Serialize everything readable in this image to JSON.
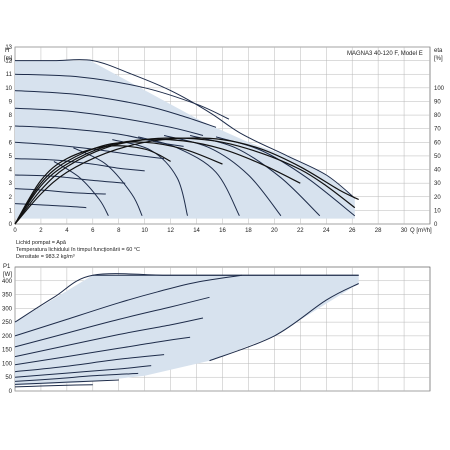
{
  "chart_data": [
    {
      "type": "line",
      "title": "MAGNA3 40-120 F, Model E",
      "xlabel": "Q [m³/h]",
      "ylabel": "H\n[m]",
      "y2label": "eta\n[%]",
      "xlim": [
        0,
        32
      ],
      "ylim": [
        0,
        13
      ],
      "y2lim": [
        0,
        130
      ],
      "xticks": [
        0,
        2,
        4,
        6,
        8,
        10,
        12,
        14,
        16,
        18,
        20,
        22,
        24,
        26,
        28,
        30
      ],
      "xtick_labels": [
        "0",
        "2",
        "4",
        "6",
        "8",
        "10",
        "12",
        "14",
        "16",
        "18",
        "20",
        "22",
        "24",
        "26",
        "28",
        "30"
      ],
      "yticks": [
        0,
        1,
        2,
        3,
        4,
        5,
        6,
        7,
        8,
        9,
        10,
        11,
        12,
        13
      ],
      "ytick_labels": [
        "0",
        "1",
        "2",
        "3",
        "4",
        "5",
        "6",
        "7",
        "8",
        "9",
        "10",
        "11",
        "12",
        "13"
      ],
      "y2ticks": [
        0,
        10,
        20,
        30,
        40,
        50,
        60,
        70,
        80,
        90,
        100
      ],
      "y2tick_labels": [
        "0",
        "10",
        "20",
        "30",
        "40",
        "50",
        "60",
        "70",
        "80",
        "90",
        "100"
      ],
      "grid": true,
      "colors": {
        "region": "#d7e2ee",
        "curve": "#1e2c4a",
        "efficiency": "#111111",
        "grid": "#b8b8b8"
      },
      "envelope": {
        "x": [
          0,
          5.8,
          14.5,
          18,
          21,
          24,
          26.2,
          26.2,
          0
        ],
        "y": [
          12,
          12,
          7.5,
          6,
          5,
          3.6,
          1.9,
          0.4,
          0.4
        ]
      },
      "series": [
        {
          "x": [
            0,
            3,
            6,
            9,
            12,
            15,
            17.5,
            21,
            24,
            26.2
          ],
          "y": [
            12,
            12,
            12,
            11,
            9.8,
            8.2,
            6.6,
            5.0,
            3.6,
            1.9
          ]
        },
        {
          "x": [
            0,
            5,
            10,
            14,
            16.5
          ],
          "y": [
            11,
            10.8,
            10,
            8.8,
            7.7
          ]
        },
        {
          "x": [
            0,
            5,
            10,
            13,
            15.5
          ],
          "y": [
            9.8,
            9.5,
            8.7,
            7.9,
            7.1
          ]
        },
        {
          "x": [
            0,
            4,
            8,
            12,
            14.5
          ],
          "y": [
            8.5,
            8.3,
            7.8,
            7.1,
            6.5
          ]
        },
        {
          "x": [
            0,
            4,
            8,
            11,
            13
          ],
          "y": [
            7.2,
            7.0,
            6.6,
            6.0,
            5.7
          ]
        },
        {
          "x": [
            0,
            3,
            6,
            9,
            11.5
          ],
          "y": [
            6.0,
            5.8,
            5.5,
            5.1,
            4.8
          ]
        },
        {
          "x": [
            0,
            3,
            6,
            8,
            10
          ],
          "y": [
            4.8,
            4.7,
            4.4,
            4.1,
            3.9
          ]
        },
        {
          "x": [
            0,
            3,
            6,
            8.5
          ],
          "y": [
            3.6,
            3.5,
            3.2,
            3.0
          ]
        },
        {
          "x": [
            0,
            2,
            4.5,
            7
          ],
          "y": [
            2.6,
            2.5,
            2.3,
            2.2
          ]
        },
        {
          "x": [
            0,
            2,
            4,
            5.5
          ],
          "y": [
            1.5,
            1.4,
            1.3,
            1.2
          ]
        }
      ],
      "throttle_curves": [
        {
          "x": [
            7.5,
            10.5,
            12.5,
            13.3
          ],
          "y": [
            6.2,
            5.4,
            3.4,
            0.6
          ]
        },
        {
          "x": [
            9.5,
            12.5,
            15.5,
            17.3
          ],
          "y": [
            6.4,
            5.6,
            3.8,
            0.6
          ]
        },
        {
          "x": [
            11.5,
            15,
            18,
            20.5
          ],
          "y": [
            6.5,
            5.6,
            3.6,
            0.6
          ]
        },
        {
          "x": [
            13.5,
            17,
            20.5,
            23.5
          ],
          "y": [
            6.5,
            5.6,
            3.4,
            0.6
          ]
        },
        {
          "x": [
            15.5,
            19,
            22.5,
            26.2
          ],
          "y": [
            6.4,
            5.4,
            3.4,
            0.6
          ]
        },
        {
          "x": [
            4.5,
            7,
            9,
            9.8
          ],
          "y": [
            5.6,
            4.4,
            2.2,
            0.6
          ]
        },
        {
          "x": [
            3,
            5,
            6.5,
            7.2
          ],
          "y": [
            4.6,
            3.4,
            1.8,
            0.6
          ]
        }
      ],
      "efficiency": [
        {
          "x": [
            0,
            2,
            4,
            7,
            10,
            13,
            16,
            19,
            22,
            25,
            26.5
          ],
          "y": [
            0,
            22,
            38,
            52,
            60,
            63,
            62,
            55,
            42,
            25,
            18
          ]
        },
        {
          "x": [
            0,
            2,
            4,
            7,
            10,
            13,
            16,
            19,
            22,
            24,
            26.2
          ],
          "y": [
            0,
            25,
            42,
            56,
            62,
            63,
            60,
            52,
            40,
            28,
            12
          ]
        },
        {
          "x": [
            0,
            2,
            4,
            7,
            10,
            13,
            16,
            19,
            22
          ],
          "y": [
            0,
            28,
            44,
            57,
            62,
            61,
            55,
            44,
            30
          ]
        },
        {
          "x": [
            0,
            2,
            4,
            7,
            10,
            13,
            16
          ],
          "y": [
            0,
            30,
            46,
            58,
            60,
            55,
            44
          ]
        },
        {
          "x": [
            0,
            2,
            4,
            7,
            10,
            12
          ],
          "y": [
            0,
            32,
            48,
            57,
            55,
            46
          ]
        }
      ],
      "notes": [
        "Lichid pompat = Apă",
        "Temperatura lichidului în timpul funcţionării = 60 °C",
        "Densitate = 983.2 kg/m³"
      ]
    },
    {
      "type": "line",
      "ylabel": "P1\n[W]",
      "xlim": [
        0,
        32
      ],
      "ylim": [
        0,
        450
      ],
      "yticks": [
        0,
        50,
        100,
        150,
        200,
        250,
        300,
        350,
        400
      ],
      "ytick_labels": [
        "0",
        "50",
        "100",
        "150",
        "200",
        "250",
        "300",
        "350",
        "400"
      ],
      "grid": true,
      "envelope": {
        "x": [
          0,
          6,
          12,
          18,
          26.5,
          26.5,
          20,
          15,
          10,
          5,
          0
        ],
        "y": [
          250,
          420,
          420,
          420,
          420,
          390,
          200,
          110,
          55,
          30,
          20
        ]
      },
      "series": [
        {
          "x": [
            0,
            3,
            6,
            12,
            18,
            26.5
          ],
          "y": [
            250,
            340,
            420,
            420,
            420,
            420
          ]
        },
        {
          "x": [
            0,
            4,
            8,
            11,
            14,
            17.5
          ],
          "y": [
            200,
            260,
            320,
            360,
            395,
            420
          ]
        },
        {
          "x": [
            0,
            4,
            8,
            12,
            15
          ],
          "y": [
            160,
            210,
            260,
            305,
            340
          ]
        },
        {
          "x": [
            0,
            4,
            8,
            12,
            14.5
          ],
          "y": [
            125,
            165,
            205,
            240,
            265
          ]
        },
        {
          "x": [
            0,
            4,
            8,
            11,
            13.5
          ],
          "y": [
            95,
            125,
            155,
            178,
            195
          ]
        },
        {
          "x": [
            0,
            4,
            8,
            11.5
          ],
          "y": [
            70,
            90,
            115,
            132
          ]
        },
        {
          "x": [
            0,
            4,
            8,
            10.5
          ],
          "y": [
            50,
            65,
            80,
            92
          ]
        },
        {
          "x": [
            0,
            3,
            6,
            9.5
          ],
          "y": [
            35,
            44,
            55,
            64
          ]
        },
        {
          "x": [
            0,
            3,
            6,
            8
          ],
          "y": [
            24,
            30,
            36,
            40
          ]
        },
        {
          "x": [
            0,
            2,
            4,
            6
          ],
          "y": [
            15,
            18,
            21,
            23
          ]
        },
        {
          "x": [
            6,
            12,
            18,
            24,
            26.5
          ],
          "y": [
            420,
            420,
            420,
            420,
            420
          ]
        },
        {
          "x": [
            15,
            20,
            24,
            26.5
          ],
          "y": [
            110,
            200,
            330,
            390
          ]
        }
      ]
    }
  ]
}
